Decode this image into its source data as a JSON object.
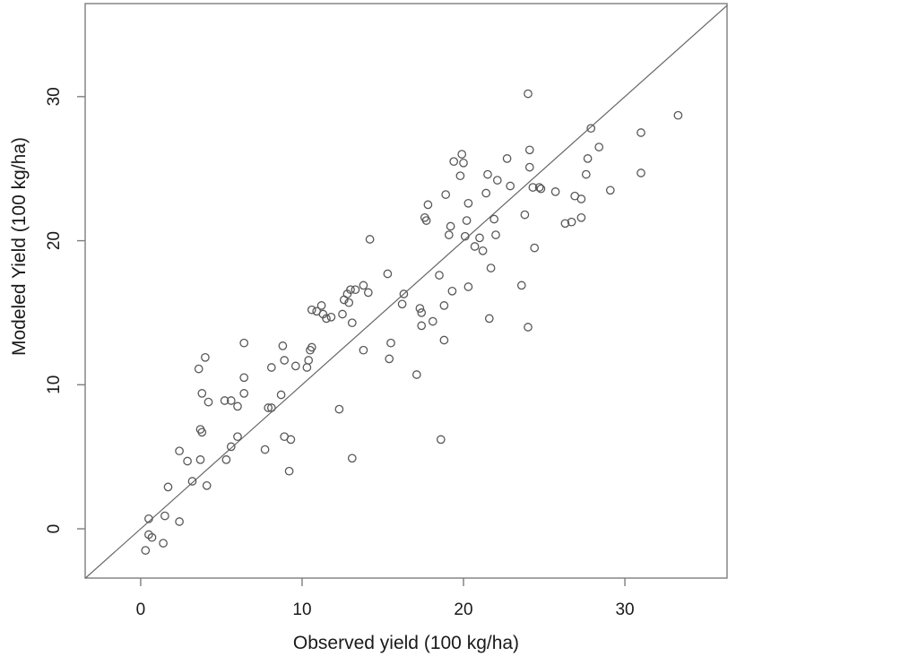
{
  "figure": {
    "background": "#ffffff",
    "text_color": "#1a1a1a",
    "box_color": "#7d7d7d",
    "point_color": "#585858",
    "line_color": "#666666"
  },
  "chart_data": {
    "type": "scatter",
    "title": "",
    "xlabel": "Observed yield (100 kg/ha)",
    "ylabel": "Modeled Yield (100 kg/ha)",
    "xlim": [
      -3.44,
      36.33
    ],
    "ylim": [
      -3.42,
      36.46
    ],
    "xticks": [
      0,
      10,
      20,
      30
    ],
    "yticks": [
      0,
      10,
      20,
      30
    ],
    "grid": false,
    "legend": null,
    "marker": "open-circle",
    "reference_line": {
      "type": "identity",
      "intercept": 0,
      "slope": 1
    },
    "points": [
      [
        24.0,
        30.2
      ],
      [
        33.3,
        28.7
      ],
      [
        27.9,
        27.8
      ],
      [
        31.0,
        27.5
      ],
      [
        24.1,
        26.3
      ],
      [
        28.4,
        26.5
      ],
      [
        27.7,
        25.7
      ],
      [
        24.1,
        25.1
      ],
      [
        27.6,
        24.6
      ],
      [
        31.0,
        24.7
      ],
      [
        19.9,
        26.0
      ],
      [
        19.4,
        25.5
      ],
      [
        20.0,
        25.4
      ],
      [
        19.8,
        24.5
      ],
      [
        21.5,
        24.6
      ],
      [
        22.7,
        25.7
      ],
      [
        22.1,
        24.2
      ],
      [
        22.9,
        23.8
      ],
      [
        21.4,
        23.3
      ],
      [
        18.9,
        23.2
      ],
      [
        24.3,
        23.7
      ],
      [
        24.7,
        23.7
      ],
      [
        24.8,
        23.6
      ],
      [
        25.7,
        23.4
      ],
      [
        26.9,
        23.1
      ],
      [
        27.3,
        22.9
      ],
      [
        29.1,
        23.5
      ],
      [
        17.8,
        22.5
      ],
      [
        20.3,
        22.6
      ],
      [
        17.6,
        21.6
      ],
      [
        17.7,
        21.4
      ],
      [
        20.2,
        21.4
      ],
      [
        21.9,
        21.5
      ],
      [
        23.8,
        21.8
      ],
      [
        26.3,
        21.2
      ],
      [
        26.7,
        21.3
      ],
      [
        27.3,
        21.6
      ],
      [
        19.2,
        21.0
      ],
      [
        19.1,
        20.4
      ],
      [
        20.1,
        20.3
      ],
      [
        21.0,
        20.2
      ],
      [
        22.0,
        20.4
      ],
      [
        20.7,
        19.6
      ],
      [
        21.2,
        19.3
      ],
      [
        24.4,
        19.5
      ],
      [
        14.2,
        20.1
      ],
      [
        21.7,
        18.1
      ],
      [
        15.3,
        17.7
      ],
      [
        18.5,
        17.6
      ],
      [
        19.3,
        16.5
      ],
      [
        20.3,
        16.8
      ],
      [
        23.6,
        16.9
      ],
      [
        13.8,
        16.9
      ],
      [
        13.3,
        16.6
      ],
      [
        13.0,
        16.6
      ],
      [
        12.8,
        16.3
      ],
      [
        14.1,
        16.4
      ],
      [
        12.6,
        15.9
      ],
      [
        12.9,
        15.7
      ],
      [
        11.2,
        15.5
      ],
      [
        10.6,
        15.2
      ],
      [
        10.9,
        15.1
      ],
      [
        11.3,
        14.9
      ],
      [
        11.5,
        14.6
      ],
      [
        11.8,
        14.7
      ],
      [
        12.5,
        14.9
      ],
      [
        13.1,
        14.3
      ],
      [
        16.3,
        16.3
      ],
      [
        16.2,
        15.6
      ],
      [
        17.3,
        15.3
      ],
      [
        17.4,
        15.0
      ],
      [
        17.4,
        14.1
      ],
      [
        18.1,
        14.4
      ],
      [
        18.8,
        15.5
      ],
      [
        18.8,
        13.1
      ],
      [
        21.6,
        14.6
      ],
      [
        24.0,
        14.0
      ],
      [
        10.6,
        12.6
      ],
      [
        10.5,
        12.4
      ],
      [
        10.4,
        11.7
      ],
      [
        10.3,
        11.2
      ],
      [
        9.6,
        11.3
      ],
      [
        8.9,
        11.7
      ],
      [
        8.1,
        11.2
      ],
      [
        8.8,
        12.7
      ],
      [
        6.4,
        12.9
      ],
      [
        6.4,
        10.5
      ],
      [
        4.0,
        11.9
      ],
      [
        3.6,
        11.1
      ],
      [
        13.8,
        12.4
      ],
      [
        15.5,
        12.9
      ],
      [
        15.4,
        11.8
      ],
      [
        17.1,
        10.7
      ],
      [
        12.3,
        8.3
      ],
      [
        18.6,
        6.2
      ],
      [
        13.1,
        4.9
      ],
      [
        3.8,
        9.4
      ],
      [
        4.2,
        8.8
      ],
      [
        5.2,
        8.9
      ],
      [
        5.6,
        8.9
      ],
      [
        6.0,
        8.5
      ],
      [
        6.4,
        9.4
      ],
      [
        8.7,
        9.3
      ],
      [
        7.9,
        8.4
      ],
      [
        8.1,
        8.4
      ],
      [
        3.7,
        6.9
      ],
      [
        3.8,
        6.7
      ],
      [
        6.0,
        6.4
      ],
      [
        5.6,
        5.7
      ],
      [
        5.3,
        4.8
      ],
      [
        2.4,
        5.4
      ],
      [
        2.9,
        4.7
      ],
      [
        3.7,
        4.8
      ],
      [
        7.7,
        5.5
      ],
      [
        8.9,
        6.4
      ],
      [
        9.3,
        6.2
      ],
      [
        9.2,
        4.0
      ],
      [
        3.2,
        3.3
      ],
      [
        4.1,
        3.0
      ],
      [
        1.7,
        2.9
      ],
      [
        0.5,
        0.7
      ],
      [
        1.5,
        0.9
      ],
      [
        2.4,
        0.5
      ],
      [
        0.5,
        -0.4
      ],
      [
        0.7,
        -0.6
      ],
      [
        1.4,
        -1.0
      ],
      [
        0.3,
        -1.5
      ]
    ]
  }
}
